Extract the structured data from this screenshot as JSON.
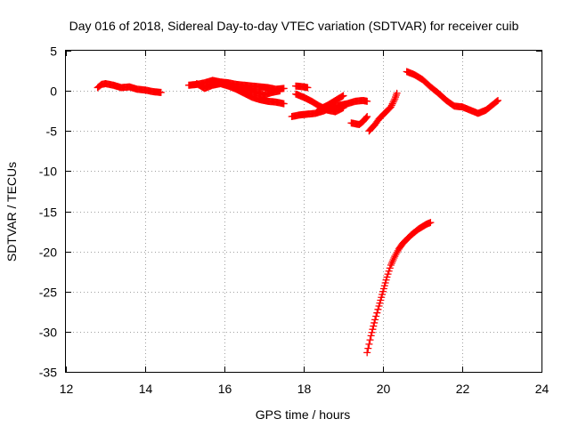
{
  "chart_data": {
    "type": "scatter",
    "title": "Day 016 of 2018, Sidereal Day-to-day VTEC variation (SDTVAR) for receiver cuib",
    "xlabel": "GPS time / hours",
    "ylabel": "SDTVAR / TECUs",
    "xlim": [
      12,
      24
    ],
    "ylim": [
      -35,
      5
    ],
    "xticks": [
      12,
      14,
      16,
      18,
      20,
      22,
      24
    ],
    "yticks": [
      5,
      0,
      -5,
      -10,
      -15,
      -20,
      -25,
      -30,
      -35
    ],
    "grid": true,
    "marker": "plus",
    "color": "#ff0000",
    "series": [
      {
        "points": [
          [
            12.8,
            0.4
          ],
          [
            12.9,
            0.8
          ],
          [
            13.0,
            0.9
          ],
          [
            13.2,
            0.7
          ],
          [
            13.4,
            0.4
          ],
          [
            13.6,
            0.5
          ],
          [
            13.8,
            0.2
          ],
          [
            14.0,
            0.1
          ],
          [
            14.2,
            -0.1
          ],
          [
            14.4,
            -0.2
          ]
        ]
      },
      {
        "points": [
          [
            15.1,
            0.7
          ],
          [
            15.3,
            0.8
          ],
          [
            15.5,
            1.0
          ],
          [
            15.7,
            1.3
          ],
          [
            15.9,
            1.1
          ],
          [
            16.1,
            1.0
          ],
          [
            16.3,
            0.8
          ],
          [
            16.5,
            0.7
          ],
          [
            16.7,
            0.6
          ],
          [
            16.9,
            0.5
          ],
          [
            17.1,
            0.4
          ],
          [
            17.3,
            0.2
          ],
          [
            17.5,
            0.3
          ]
        ]
      },
      {
        "points": [
          [
            15.3,
            0.9
          ],
          [
            15.5,
            0.3
          ],
          [
            15.7,
            0.7
          ],
          [
            15.9,
            0.9
          ],
          [
            16.1,
            0.6
          ],
          [
            16.3,
            0.2
          ],
          [
            16.5,
            -0.3
          ],
          [
            16.7,
            -0.8
          ],
          [
            16.9,
            -1.1
          ],
          [
            17.1,
            -1.3
          ],
          [
            17.3,
            -1.4
          ],
          [
            17.5,
            -1.6
          ]
        ]
      },
      {
        "points": [
          [
            16.4,
            0.5
          ],
          [
            16.6,
            0.2
          ],
          [
            16.8,
            -0.2
          ],
          [
            17.0,
            -0.5
          ],
          [
            17.2,
            -0.2
          ],
          [
            17.4,
            0.0
          ]
        ]
      },
      {
        "points": [
          [
            17.8,
            0.6
          ],
          [
            18.0,
            0.5
          ],
          [
            18.1,
            0.4
          ]
        ]
      },
      {
        "points": [
          [
            17.8,
            -0.4
          ],
          [
            18.0,
            -0.8
          ],
          [
            18.2,
            -1.3
          ],
          [
            18.4,
            -1.9
          ],
          [
            18.6,
            -2.4
          ],
          [
            18.8,
            -2.6
          ],
          [
            19.0,
            -2.1
          ]
        ]
      },
      {
        "points": [
          [
            17.7,
            -3.2
          ],
          [
            17.9,
            -3.0
          ],
          [
            18.1,
            -2.9
          ],
          [
            18.3,
            -2.8
          ],
          [
            18.5,
            -2.5
          ],
          [
            18.7,
            -2.1
          ],
          [
            18.9,
            -1.8
          ],
          [
            19.1,
            -1.6
          ],
          [
            19.3,
            -1.3
          ],
          [
            19.5,
            -1.2
          ],
          [
            19.6,
            -1.3
          ]
        ]
      },
      {
        "points": [
          [
            18.4,
            -2.3
          ],
          [
            18.6,
            -1.8
          ],
          [
            18.8,
            -1.2
          ],
          [
            19.0,
            -0.6
          ]
        ]
      },
      {
        "points": [
          [
            19.2,
            -4.0
          ],
          [
            19.4,
            -4.2
          ],
          [
            19.5,
            -3.8
          ],
          [
            19.6,
            -3.2
          ]
        ]
      },
      {
        "points": [
          [
            19.65,
            -5.0
          ],
          [
            19.8,
            -4.2
          ],
          [
            19.9,
            -3.5
          ],
          [
            20.0,
            -3.0
          ],
          [
            20.1,
            -2.5
          ],
          [
            20.2,
            -2.0
          ],
          [
            20.3,
            -1.0
          ],
          [
            20.35,
            -0.3
          ]
        ]
      },
      {
        "points": [
          [
            20.6,
            2.4
          ],
          [
            20.8,
            2.0
          ],
          [
            21.0,
            1.4
          ],
          [
            21.2,
            0.5
          ],
          [
            21.4,
            -0.3
          ],
          [
            21.6,
            -1.2
          ],
          [
            21.8,
            -1.9
          ],
          [
            22.0,
            -2.0
          ],
          [
            22.2,
            -2.4
          ],
          [
            22.4,
            -2.8
          ],
          [
            22.6,
            -2.4
          ],
          [
            22.8,
            -1.6
          ],
          [
            22.9,
            -1.2
          ]
        ]
      },
      {
        "points": [
          [
            19.6,
            -32.6
          ],
          [
            19.7,
            -30.5
          ],
          [
            19.8,
            -28.5
          ],
          [
            19.9,
            -26.8
          ],
          [
            20.0,
            -25.0
          ],
          [
            20.1,
            -23.2
          ],
          [
            20.2,
            -21.7
          ],
          [
            20.3,
            -20.6
          ],
          [
            20.4,
            -19.7
          ],
          [
            20.5,
            -19.0
          ],
          [
            20.6,
            -18.5
          ],
          [
            20.7,
            -18.0
          ],
          [
            20.8,
            -17.6
          ],
          [
            20.9,
            -17.2
          ],
          [
            21.0,
            -16.9
          ],
          [
            21.1,
            -16.6
          ],
          [
            21.2,
            -16.4
          ]
        ]
      }
    ]
  }
}
